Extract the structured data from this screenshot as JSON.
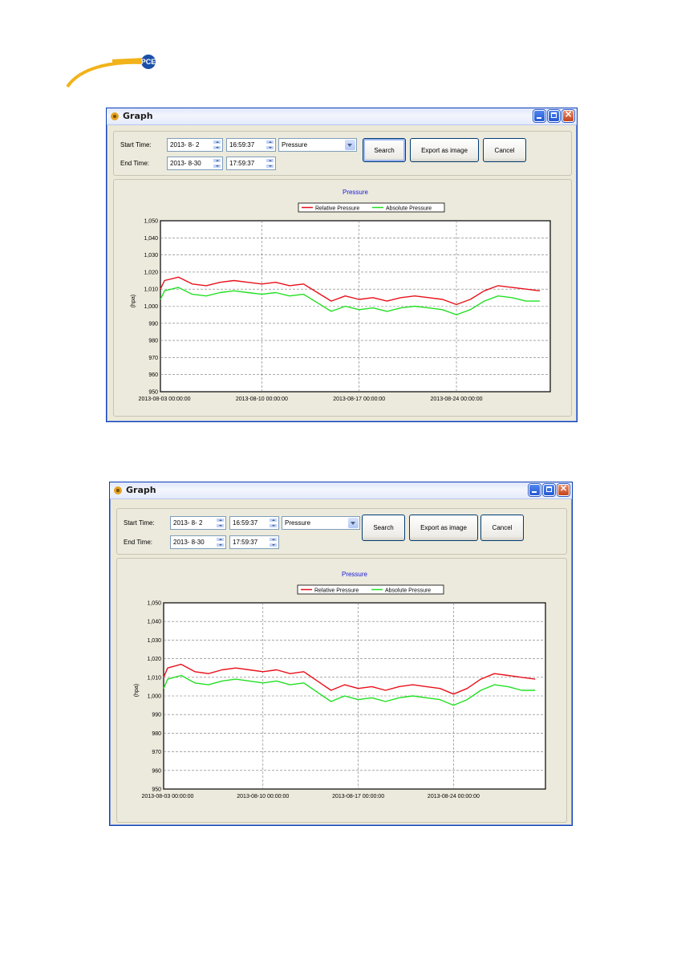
{
  "logo": {
    "text": "PCE"
  },
  "window": {
    "title": "Graph",
    "start_label": "Start Time:",
    "end_label": "End Time:",
    "start_date": "2013- 8- 2",
    "start_time": "16:59:37",
    "end_date": "2013- 8-30",
    "end_time": "17:59:37",
    "measurement": "Pressure",
    "search_label": "Search",
    "export_label": "Export as image",
    "cancel_label": "Cancel"
  },
  "colors": {
    "relative": "#e8101a",
    "absolute": "#22e022",
    "title_blue": "#1a1ad8",
    "titlebar": "#dfe7fb"
  },
  "chart_data": {
    "type": "line",
    "title": "Pressure",
    "ylabel": "(hpa)",
    "xlabel": "",
    "ylim": [
      950,
      1050
    ],
    "yticks": [
      "950",
      "960",
      "970",
      "980",
      "990",
      "1,000",
      "1,010",
      "1,020",
      "1,030",
      "1,040",
      "1,050"
    ],
    "xticks": [
      "2013-08-03 00:00:00",
      "2013-08-10 00:00:00",
      "2013-08-17 00:00:00",
      "2013-08-24 00:00:00"
    ],
    "x_start": "2013-08-02 16:59:37",
    "x_end": "2013-08-30 17:59:37",
    "grid": true,
    "legend_position": "top-center",
    "series": [
      {
        "name": "Relative Pressure",
        "color": "#e8101a",
        "x": [
          "2013-08-02",
          "2013-08-03",
          "2013-08-04",
          "2013-08-05",
          "2013-08-06",
          "2013-08-07",
          "2013-08-08",
          "2013-08-09",
          "2013-08-10",
          "2013-08-11",
          "2013-08-12",
          "2013-08-13",
          "2013-08-14",
          "2013-08-15",
          "2013-08-16",
          "2013-08-17",
          "2013-08-18",
          "2013-08-19",
          "2013-08-20",
          "2013-08-21",
          "2013-08-22",
          "2013-08-23",
          "2013-08-24",
          "2013-08-25",
          "2013-08-26",
          "2013-08-27",
          "2013-08-28",
          "2013-08-29",
          "2013-08-30"
        ],
        "values": [
          1010,
          1015,
          1017,
          1013,
          1012,
          1014,
          1015,
          1014,
          1013,
          1014,
          1012,
          1013,
          1008,
          1003,
          1006,
          1004,
          1005,
          1003,
          1005,
          1006,
          1005,
          1004,
          1001,
          1004,
          1009,
          1012,
          1011,
          1010,
          1009
        ]
      },
      {
        "name": "Absolute Pressure",
        "color": "#22e022",
        "x": [
          "2013-08-02",
          "2013-08-03",
          "2013-08-04",
          "2013-08-05",
          "2013-08-06",
          "2013-08-07",
          "2013-08-08",
          "2013-08-09",
          "2013-08-10",
          "2013-08-11",
          "2013-08-12",
          "2013-08-13",
          "2013-08-14",
          "2013-08-15",
          "2013-08-16",
          "2013-08-17",
          "2013-08-18",
          "2013-08-19",
          "2013-08-20",
          "2013-08-21",
          "2013-08-22",
          "2013-08-23",
          "2013-08-24",
          "2013-08-25",
          "2013-08-26",
          "2013-08-27",
          "2013-08-28",
          "2013-08-29",
          "2013-08-30"
        ],
        "values": [
          1004,
          1009,
          1011,
          1007,
          1006,
          1008,
          1009,
          1008,
          1007,
          1008,
          1006,
          1007,
          1002,
          997,
          1000,
          998,
          999,
          997,
          999,
          1000,
          999,
          998,
          995,
          998,
          1003,
          1006,
          1005,
          1003,
          1003
        ]
      }
    ]
  }
}
